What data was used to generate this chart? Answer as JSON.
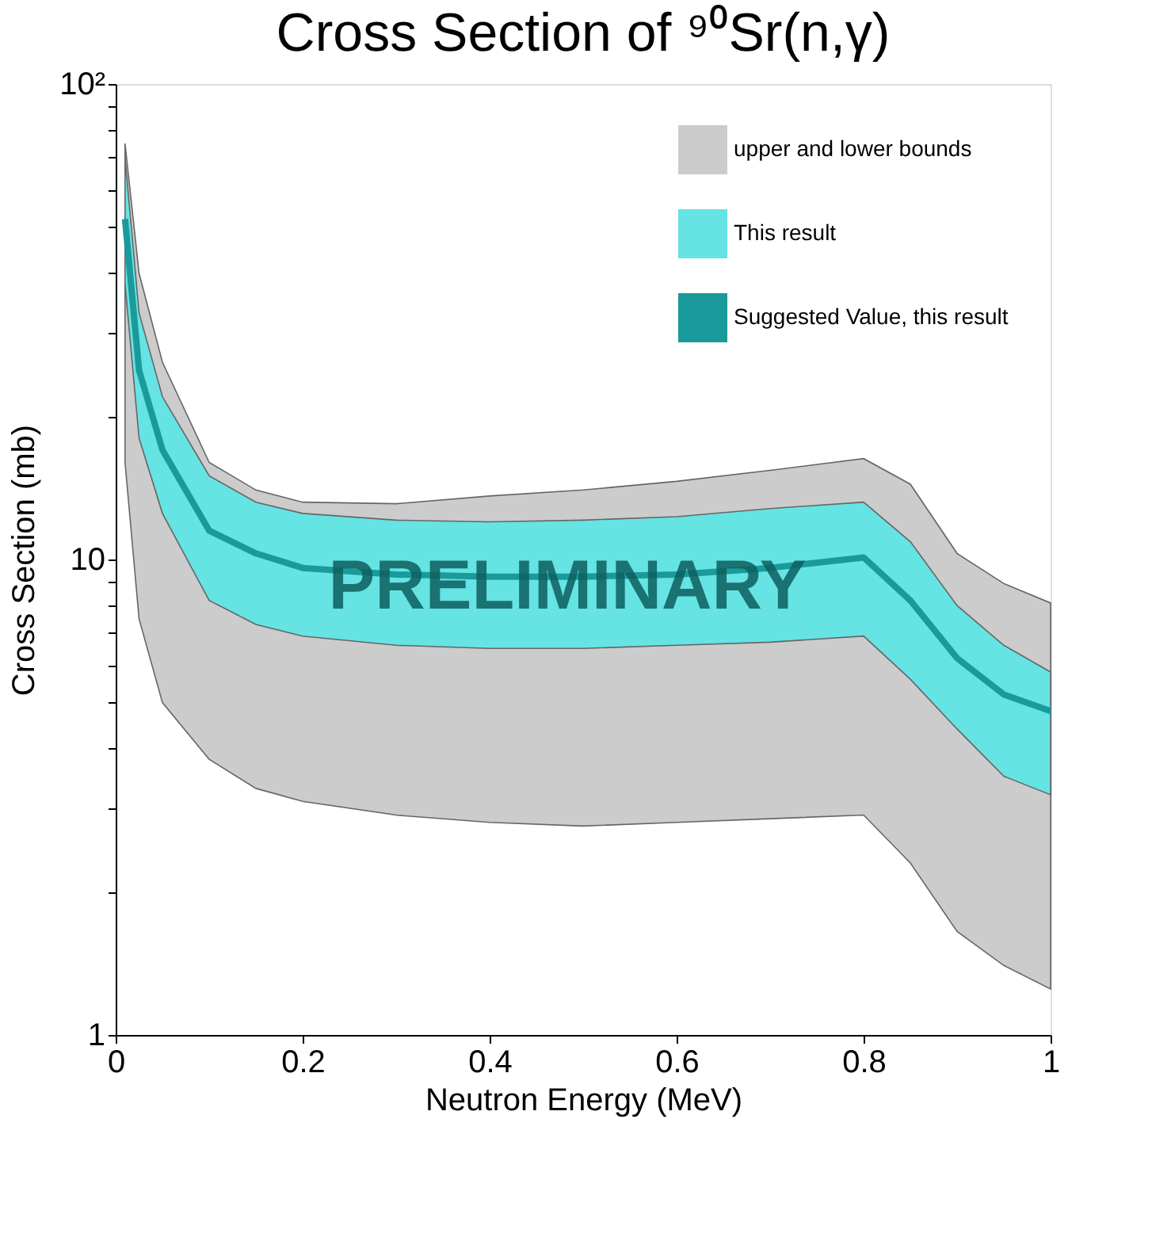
{
  "chart_data": {
    "type": "area",
    "title": "Cross Section of ⁹⁰Sr(n,γ)",
    "xlabel": "Neutron Energy (MeV)",
    "ylabel": "Cross Section (mb)",
    "x": [
      0.01,
      0.025,
      0.05,
      0.1,
      0.15,
      0.2,
      0.3,
      0.4,
      0.5,
      0.6,
      0.7,
      0.8,
      0.85,
      0.9,
      0.95,
      1.0
    ],
    "series": [
      {
        "name": "upper and lower bounds",
        "color": "#cccccc",
        "values": [
          null,
          null,
          null,
          null,
          null,
          null,
          null,
          null,
          null,
          null,
          null,
          null,
          null,
          null,
          null,
          null
        ],
        "lower": [
          16,
          7.5,
          5.0,
          3.8,
          3.3,
          3.1,
          2.9,
          2.8,
          2.75,
          2.8,
          2.85,
          2.9,
          2.3,
          1.65,
          1.4,
          1.25
        ],
        "upper": [
          75,
          40,
          26,
          16,
          14,
          13.2,
          13.1,
          13.6,
          14.0,
          14.6,
          15.4,
          16.3,
          14.4,
          10.3,
          8.9,
          8.1
        ]
      },
      {
        "name": "This result",
        "color": "#66e3e3",
        "values": [
          null,
          null,
          null,
          null,
          null,
          null,
          null,
          null,
          null,
          null,
          null,
          null,
          null,
          null,
          null,
          null
        ],
        "lower": [
          38,
          18,
          12.5,
          8.2,
          7.3,
          6.9,
          6.6,
          6.5,
          6.5,
          6.6,
          6.7,
          6.9,
          5.6,
          4.4,
          3.5,
          3.2
        ],
        "upper": [
          70,
          33,
          22,
          15,
          13.2,
          12.5,
          12.1,
          12.0,
          12.1,
          12.3,
          12.8,
          13.2,
          10.9,
          8.0,
          6.6,
          5.8
        ]
      },
      {
        "name": "Suggested Value, this result",
        "type": "line",
        "color": "#1a9a9a",
        "values": [
          52,
          25,
          17,
          11.5,
          10.3,
          9.6,
          9.3,
          9.2,
          9.2,
          9.3,
          9.6,
          10.1,
          8.2,
          6.2,
          5.2,
          4.8
        ]
      }
    ],
    "xlim": [
      0,
      1
    ],
    "xticks": [
      0,
      0.2,
      0.4,
      0.6,
      0.8,
      1
    ],
    "ylim": [
      1,
      100
    ],
    "log": true,
    "yticks": [
      1,
      {
        "value": 2,
        "label": null
      },
      {
        "value": 3,
        "label": null
      },
      {
        "value": 4,
        "label": null
      },
      {
        "value": 5,
        "label": null
      },
      {
        "value": 6,
        "label": null
      },
      {
        "value": 7,
        "label": null
      },
      {
        "value": 8,
        "label": null
      },
      {
        "value": 9,
        "label": null
      },
      10,
      {
        "value": 20,
        "label": null
      },
      {
        "value": 30,
        "label": null
      },
      {
        "value": 40,
        "label": null
      },
      {
        "value": 50,
        "label": null
      },
      {
        "value": 60,
        "label": null
      },
      {
        "value": 70,
        "label": null
      },
      {
        "value": 80,
        "label": null
      },
      {
        "value": 90,
        "label": null
      },
      {
        "value": 100,
        "label": "10²"
      }
    ],
    "annotations": [
      "PRELIMINARY"
    ],
    "legend": "top right",
    "grid": false,
    "line_style": "solid",
    "marker": "none"
  }
}
